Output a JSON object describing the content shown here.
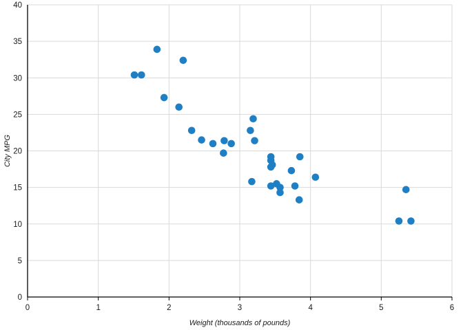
{
  "chart_data": {
    "type": "scatter",
    "xlabel": "Weight (thousands of pounds)",
    "ylabel": "City MPG",
    "xlim": [
      0,
      6
    ],
    "ylim": [
      0,
      40
    ],
    "x_ticks": [
      0,
      1,
      2,
      3,
      4,
      5,
      6
    ],
    "y_ticks": [
      0,
      5,
      10,
      15,
      20,
      25,
      30,
      35,
      40
    ],
    "grid": true,
    "color": "#1f7fc5",
    "points": [
      {
        "x": 1.51,
        "y": 30.4
      },
      {
        "x": 1.61,
        "y": 30.4
      },
      {
        "x": 1.83,
        "y": 33.9
      },
      {
        "x": 1.93,
        "y": 27.3
      },
      {
        "x": 2.14,
        "y": 26.0
      },
      {
        "x": 2.2,
        "y": 32.4
      },
      {
        "x": 2.32,
        "y": 22.8
      },
      {
        "x": 2.46,
        "y": 21.5
      },
      {
        "x": 2.62,
        "y": 21.0
      },
      {
        "x": 2.77,
        "y": 19.7
      },
      {
        "x": 2.78,
        "y": 21.4
      },
      {
        "x": 2.88,
        "y": 21.0
      },
      {
        "x": 3.15,
        "y": 22.8
      },
      {
        "x": 3.17,
        "y": 15.8
      },
      {
        "x": 3.19,
        "y": 24.4
      },
      {
        "x": 3.21,
        "y": 21.4
      },
      {
        "x": 3.44,
        "y": 19.2
      },
      {
        "x": 3.44,
        "y": 18.7
      },
      {
        "x": 3.44,
        "y": 17.8
      },
      {
        "x": 3.44,
        "y": 15.2
      },
      {
        "x": 3.46,
        "y": 18.1
      },
      {
        "x": 3.52,
        "y": 15.5
      },
      {
        "x": 3.57,
        "y": 15.0
      },
      {
        "x": 3.57,
        "y": 14.3
      },
      {
        "x": 3.73,
        "y": 17.3
      },
      {
        "x": 3.78,
        "y": 15.2
      },
      {
        "x": 3.84,
        "y": 13.3
      },
      {
        "x": 3.85,
        "y": 19.2
      },
      {
        "x": 4.07,
        "y": 16.4
      },
      {
        "x": 5.25,
        "y": 10.4
      },
      {
        "x": 5.35,
        "y": 14.7
      },
      {
        "x": 5.42,
        "y": 10.4
      }
    ]
  }
}
